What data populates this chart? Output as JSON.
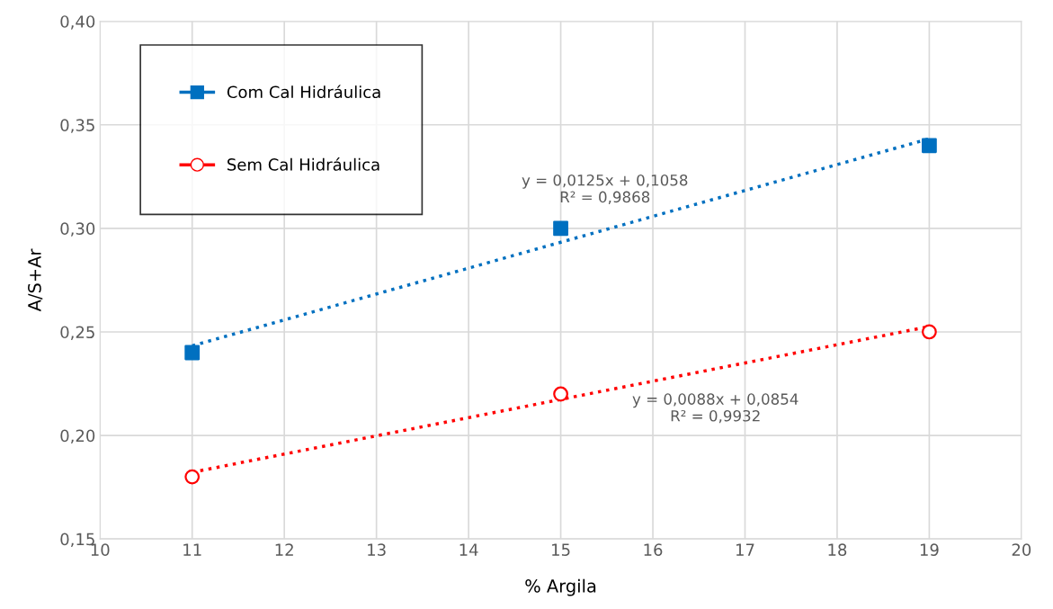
{
  "chart_data": {
    "type": "scatter",
    "xlabel": "% Argila",
    "ylabel": "A/S+Ar",
    "series": [
      {
        "name": "Com Cal Hidráulica",
        "marker": "square",
        "color": "#0070c0",
        "x": [
          11,
          15,
          19
        ],
        "values": [
          0.24,
          0.3,
          0.34
        ]
      },
      {
        "name": "Sem Cal Hidráulica",
        "marker": "circle",
        "color": "#ff0000",
        "x": [
          11,
          15,
          19
        ],
        "values": [
          0.18,
          0.22,
          0.25
        ]
      },
      {
        "type": "line",
        "line_style": "dotted",
        "color": "#0070c0",
        "x": [
          11,
          19
        ],
        "values": [
          0.2433,
          0.3433
        ]
      },
      {
        "type": "line",
        "line_style": "dotted",
        "color": "#ff0000",
        "x": [
          11,
          19
        ],
        "values": [
          0.1822,
          0.2526
        ]
      }
    ],
    "annotations": [
      "y = 0,0125x + 0,1058\nR² = 0,9868",
      "y = 0,0088x + 0,0854\nR² = 0,9932"
    ],
    "xlim": [
      10,
      20
    ],
    "xticks": [
      10,
      11,
      12,
      13,
      14,
      15,
      16,
      17,
      18,
      19,
      20
    ],
    "ylim": [
      0.15,
      0.4
    ],
    "yticks": [
      {
        "value": 0.15,
        "label": "0,15"
      },
      {
        "value": 0.2,
        "label": "0,20"
      },
      {
        "value": 0.25,
        "label": "0,25"
      },
      {
        "value": 0.3,
        "label": "0,30"
      },
      {
        "value": 0.35,
        "label": "0,35"
      },
      {
        "value": 0.4,
        "label": "0,40"
      }
    ],
    "grid": true,
    "legend": "top left"
  }
}
